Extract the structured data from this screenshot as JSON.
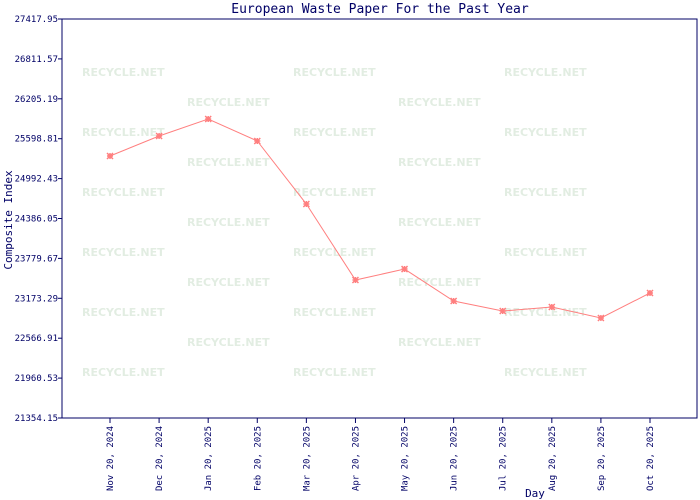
{
  "chart_data": {
    "type": "line",
    "title": "European Waste Paper For the Past Year",
    "y_label": "Composite Index",
    "x_label": "Day",
    "watermark": "RECYCLE.NET",
    "categories": [
      "Nov 20, 2024",
      "Dec 20, 2024",
      "Jan 20, 2025",
      "Feb 20, 2025",
      "Mar 20, 2025",
      "Apr 20, 2025",
      "May 20, 2025",
      "Jun 20, 2025",
      "Jul 20, 2025",
      "Aug 20, 2025",
      "Sep 20, 2025",
      "Oct 20, 2025"
    ],
    "values": [
      25336,
      25640,
      25898,
      25564,
      24606,
      23451,
      23618,
      23132,
      22980,
      23041,
      22874,
      23254
    ],
    "color": "#ff7f7f",
    "ylim": [
      21354.15,
      27417.95
    ],
    "yticks": [
      21354.15,
      21960.53,
      22566.91,
      23173.29,
      23779.67,
      24386.05,
      24992.43,
      25598.81,
      26205.19,
      26811.57,
      27417.95
    ]
  }
}
